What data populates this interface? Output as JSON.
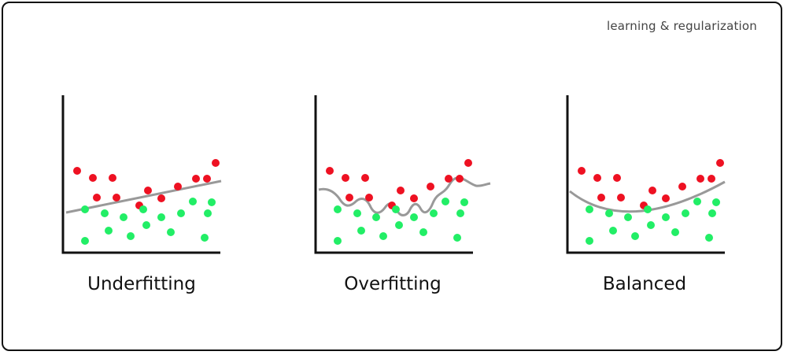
{
  "caption": "learning & regularization",
  "colors": {
    "class_positive": "#ee1122",
    "class_negative": "#22ee66",
    "fit_curve": "#999999",
    "axes": "#111111",
    "frame": "#111111"
  },
  "panels": [
    {
      "title": "Underfitting",
      "fit": "linear"
    },
    {
      "title": "Overfitting",
      "fit": "wiggly"
    },
    {
      "title": "Balanced",
      "fit": "parabola"
    }
  ]
}
